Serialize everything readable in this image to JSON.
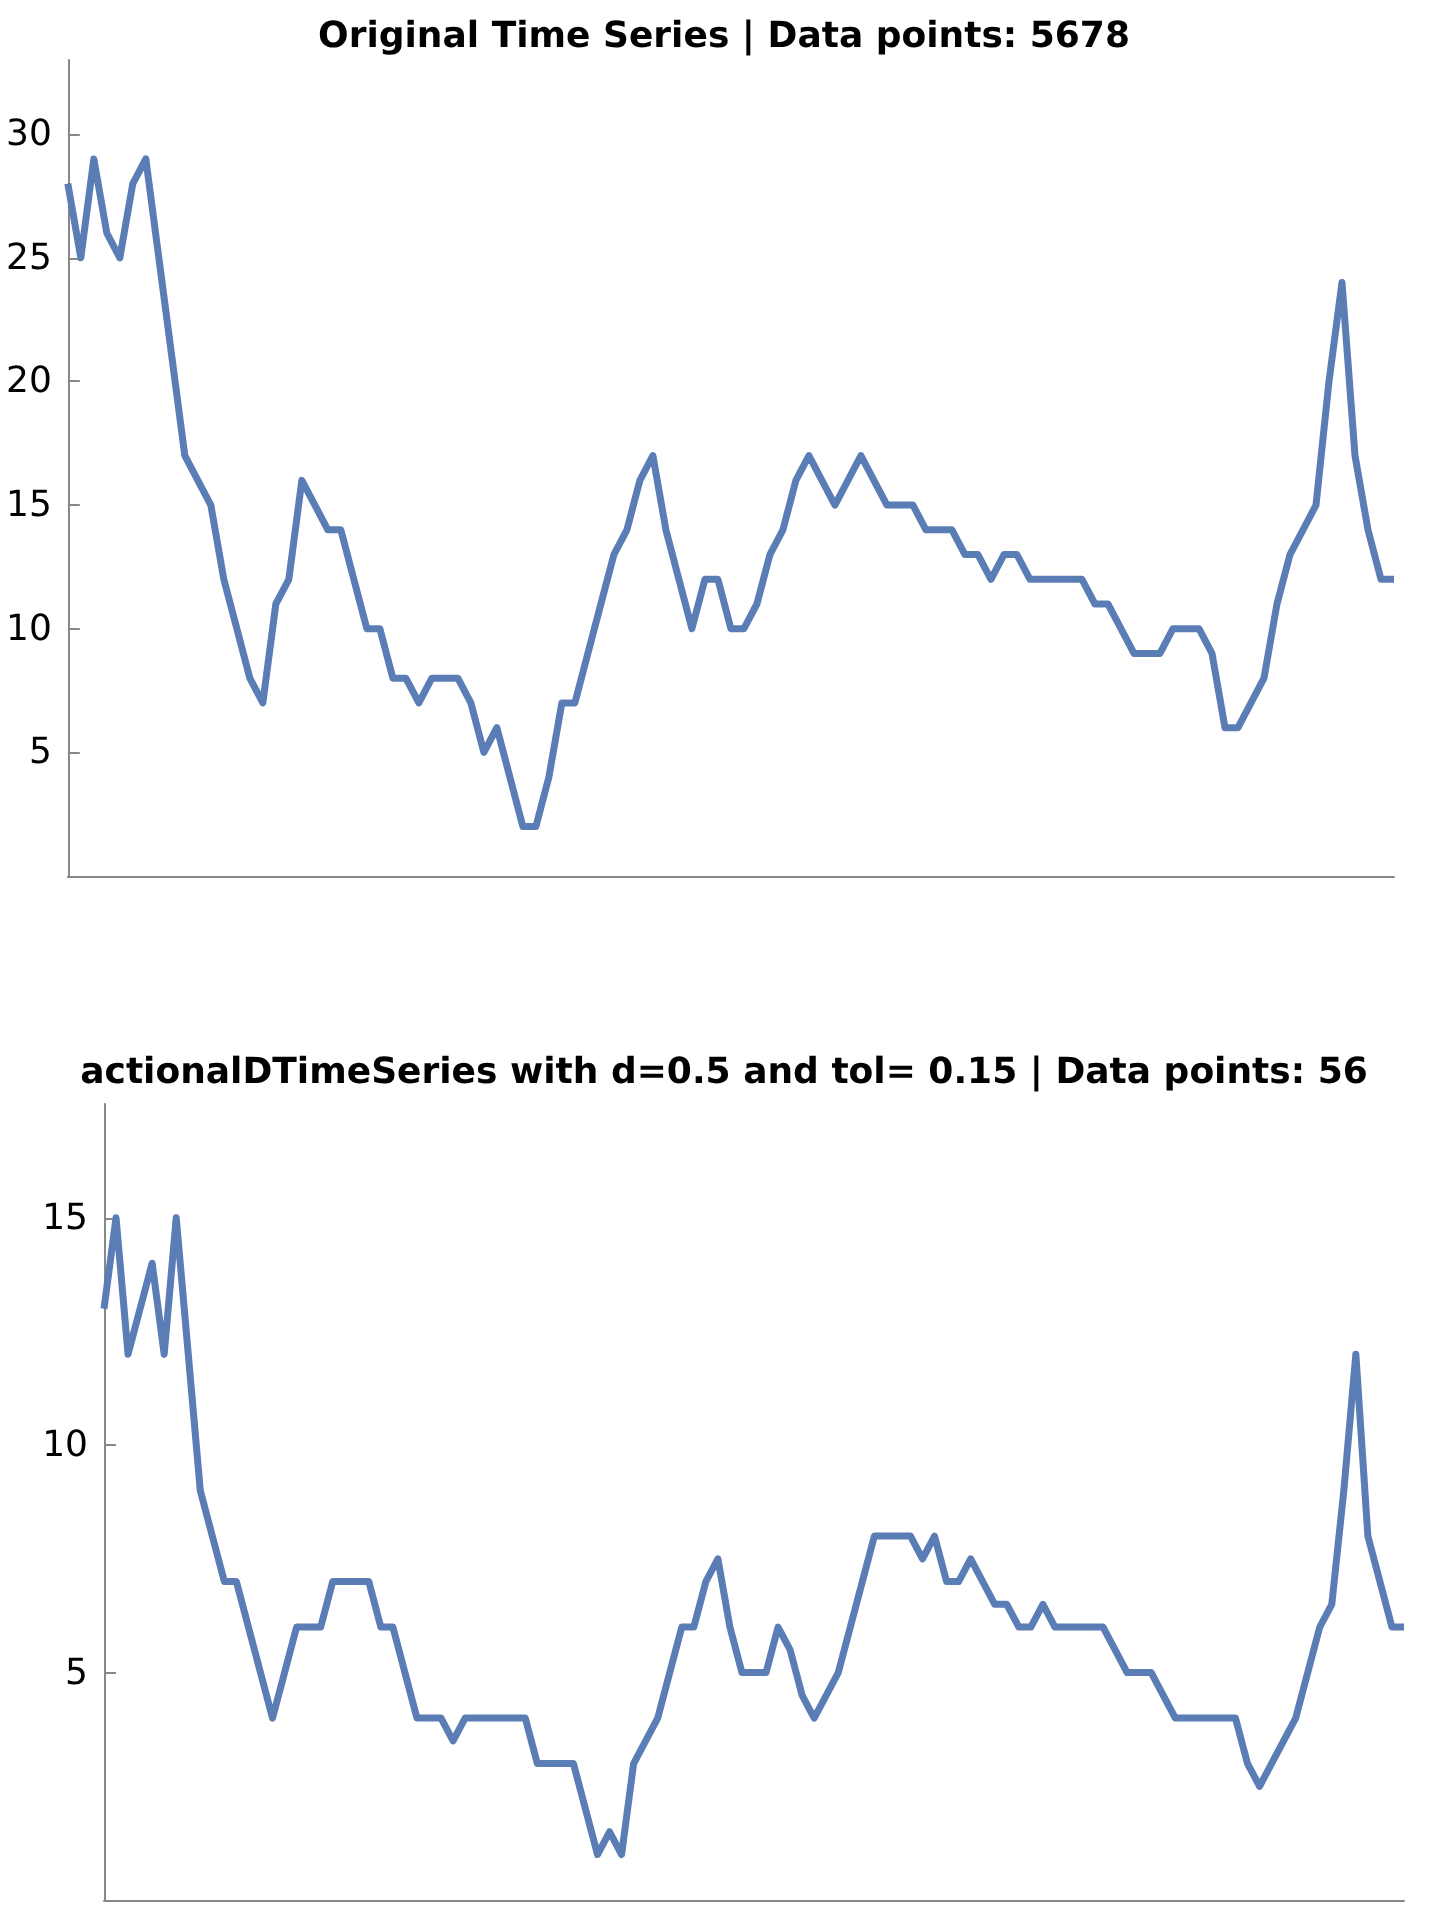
{
  "chart_data": [
    {
      "type": "line",
      "title": "Original Time Series | Data points: 5678",
      "categories": [
        null,
        null,
        null,
        null,
        null,
        null,
        null,
        null,
        null,
        null,
        null,
        null,
        null,
        null,
        null,
        null,
        null,
        null,
        null,
        null,
        null,
        null,
        null,
        null,
        null,
        null,
        null,
        null,
        null,
        null,
        null,
        null,
        null,
        null,
        null,
        null,
        null,
        null,
        null,
        null,
        null,
        null,
        null,
        null,
        null,
        null,
        null,
        null,
        null,
        null,
        null,
        null,
        null,
        null,
        null,
        null,
        null,
        null,
        null,
        null,
        null,
        null,
        null,
        null,
        null,
        null,
        null,
        null,
        null,
        null,
        null,
        null,
        null,
        null,
        null,
        null,
        null,
        null,
        null,
        null,
        null,
        null,
        null,
        null,
        null,
        null,
        null,
        null,
        null,
        null,
        null,
        null,
        null,
        null,
        null,
        null,
        null,
        null,
        null,
        null,
        null,
        null,
        null
      ],
      "series": [
        {
          "color": "#5b7db5",
          "values": [
            28,
            25,
            29,
            26,
            25,
            28,
            29,
            25,
            21,
            17,
            16,
            15,
            12,
            10,
            8,
            7,
            11,
            12,
            16,
            15,
            14,
            14,
            12,
            10,
            10,
            8,
            8,
            7,
            8,
            8,
            8,
            7,
            5,
            6,
            4,
            2,
            2,
            4,
            7,
            7,
            9,
            11,
            13,
            14,
            16,
            17,
            14,
            12,
            10,
            12,
            12,
            10,
            10,
            11,
            13,
            14,
            16,
            17,
            16,
            15,
            16,
            17,
            16,
            15,
            15,
            15,
            14,
            14,
            14,
            13,
            13,
            12,
            13,
            13,
            12,
            12,
            12,
            12,
            12,
            11,
            11,
            10,
            9,
            9,
            9,
            10,
            10,
            10,
            9,
            6,
            6,
            7,
            8,
            11,
            13,
            14,
            15,
            20,
            24,
            17,
            14,
            12,
            12
          ]
        }
      ],
      "ylim": [
        0,
        33
      ],
      "yticks": [
        5,
        10,
        15,
        20,
        25,
        30
      ],
      "grid": false,
      "line_style": "solid",
      "tick_labels": "y"
    },
    {
      "type": "line",
      "title": "actionalDTimeSeries with d=0.5 and tol= 0.15 | Data points: 56",
      "categories": [
        null,
        null,
        null,
        null,
        null,
        null,
        null,
        null,
        null,
        null,
        null,
        null,
        null,
        null,
        null,
        null,
        null,
        null,
        null,
        null,
        null,
        null,
        null,
        null,
        null,
        null,
        null,
        null,
        null,
        null,
        null,
        null,
        null,
        null,
        null,
        null,
        null,
        null,
        null,
        null,
        null,
        null,
        null,
        null,
        null,
        null,
        null,
        null,
        null,
        null,
        null,
        null,
        null,
        null,
        null,
        null,
        null,
        null,
        null,
        null,
        null,
        null,
        null,
        null,
        null,
        null,
        null,
        null,
        null,
        null,
        null,
        null,
        null,
        null,
        null,
        null,
        null,
        null,
        null,
        null,
        null,
        null,
        null,
        null,
        null,
        null,
        null,
        null,
        null,
        null,
        null,
        null,
        null,
        null,
        null,
        null,
        null,
        null,
        null,
        null,
        null,
        null,
        null,
        null,
        null,
        null,
        null,
        null,
        null
      ],
      "series": [
        {
          "color": "#5b7db5",
          "values": [
            13,
            15,
            12,
            13,
            14,
            12,
            15,
            12,
            9,
            8,
            7,
            7,
            6,
            5,
            4,
            5,
            6,
            6,
            6,
            7,
            7,
            7,
            7,
            6,
            6,
            5,
            4,
            4,
            4,
            3.5,
            4,
            4,
            4,
            4,
            4,
            4,
            3,
            3,
            3,
            3,
            2,
            1,
            1.5,
            1,
            3,
            3.5,
            4,
            5,
            6,
            6,
            7,
            7.5,
            6,
            5,
            5,
            5,
            6,
            5.5,
            4.5,
            4,
            4.5,
            5,
            6,
            7,
            8,
            8,
            8,
            8,
            7.5,
            8,
            7,
            7,
            7.5,
            7,
            6.5,
            6.5,
            6,
            6,
            6.5,
            6,
            6,
            6,
            6,
            6,
            5.5,
            5,
            5,
            5,
            4.5,
            4,
            4,
            4,
            4,
            4,
            4,
            3,
            2.5,
            3,
            3.5,
            4,
            5,
            6,
            6.5,
            9,
            12,
            8,
            7,
            6,
            6
          ]
        }
      ],
      "ylim": [
        0,
        17.5
      ],
      "yticks": [
        5,
        10,
        15
      ],
      "grid": false,
      "line_style": "solid",
      "tick_labels": "y"
    }
  ]
}
